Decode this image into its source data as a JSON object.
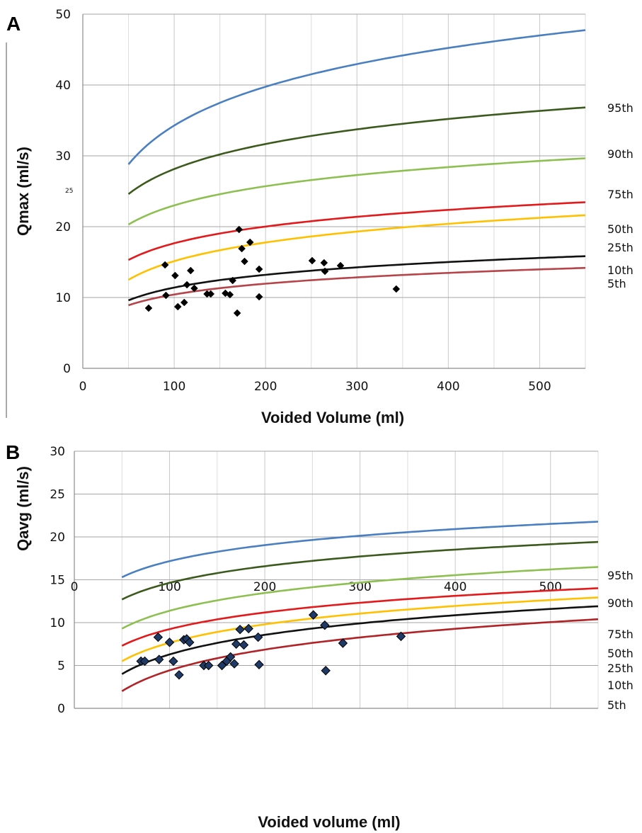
{
  "chart_data": [
    {
      "panel": "A",
      "type": "scatter",
      "xlabel": "Voided Volume (ml)",
      "ylabel": "Qmax (ml/s)",
      "xlim": [
        0,
        550
      ],
      "ylim": [
        0,
        50
      ],
      "xticks": [
        "0",
        "100",
        "200",
        "300",
        "400",
        "500"
      ],
      "yticks": [
        "0",
        "10",
        "20",
        "30",
        "40",
        "50"
      ],
      "stray_label": "25",
      "grid": true,
      "points": [
        [
          72,
          8.5
        ],
        [
          90,
          14.6
        ],
        [
          91,
          10.3
        ],
        [
          101,
          13.1
        ],
        [
          104,
          8.7
        ],
        [
          111,
          9.3
        ],
        [
          114,
          11.8
        ],
        [
          118,
          13.8
        ],
        [
          122,
          11.3
        ],
        [
          136,
          10.5
        ],
        [
          140,
          10.5
        ],
        [
          156,
          10.6
        ],
        [
          161,
          10.4
        ],
        [
          164,
          12.4
        ],
        [
          169,
          7.8
        ],
        [
          171,
          19.6
        ],
        [
          174,
          16.9
        ],
        [
          177,
          15.1
        ],
        [
          183,
          17.8
        ],
        [
          193,
          14.0
        ],
        [
          193,
          10.1
        ],
        [
          251,
          15.2
        ],
        [
          264,
          14.9
        ],
        [
          265,
          13.7
        ],
        [
          282,
          14.5
        ],
        [
          343,
          11.2
        ]
      ],
      "curves": [
        {
          "name": "95th",
          "color": "#4a7fc1",
          "a": 28.8,
          "b": 7.9
        },
        {
          "name": "90th",
          "color": "#3d5a1e",
          "a": 24.6,
          "b": 5.1
        },
        {
          "name": "75th",
          "color": "#8dc050",
          "a": 20.3,
          "b": 3.9
        },
        {
          "name": "50th",
          "color": "#e31a1c",
          "a": 15.3,
          "b": 3.4
        },
        {
          "name": "25th",
          "color": "#ffc000",
          "a": 12.5,
          "b": 3.8
        },
        {
          "name": "10th",
          "color": "#111111",
          "a": 9.6,
          "b": 2.6
        },
        {
          "name": "5th",
          "color": "#b5454a",
          "a": 8.9,
          "b": 2.2
        }
      ]
    },
    {
      "panel": "B",
      "type": "scatter",
      "xlabel": "Voided volume (ml)",
      "ylabel": "Qavg (ml/s)",
      "xlim": [
        0,
        550
      ],
      "ylim": [
        0,
        30
      ],
      "xticks": [
        "0",
        "100",
        "200",
        "300",
        "400",
        "500"
      ],
      "yticks": [
        "0",
        "5",
        "10",
        "15",
        "20",
        "25",
        "30"
      ],
      "grid": true,
      "points": [
        [
          70,
          5.5
        ],
        [
          74,
          5.5
        ],
        [
          88,
          8.3
        ],
        [
          89,
          5.7
        ],
        [
          100,
          7.7
        ],
        [
          104,
          5.5
        ],
        [
          110,
          3.9
        ],
        [
          115,
          8.0
        ],
        [
          118,
          8.1
        ],
        [
          121,
          7.7
        ],
        [
          136,
          5.0
        ],
        [
          141,
          5.0
        ],
        [
          155,
          5.0
        ],
        [
          160,
          5.5
        ],
        [
          164,
          6.0
        ],
        [
          168,
          5.2
        ],
        [
          170,
          7.5
        ],
        [
          174,
          9.2
        ],
        [
          178,
          7.4
        ],
        [
          183,
          9.3
        ],
        [
          193,
          8.3
        ],
        [
          194,
          5.1
        ],
        [
          251,
          10.9
        ],
        [
          263,
          9.7
        ],
        [
          264,
          4.4
        ],
        [
          282,
          7.6
        ],
        [
          343,
          8.4
        ]
      ],
      "curves": [
        {
          "name": "95th",
          "color": "#4a7fc1",
          "a": 15.3,
          "b": 2.7
        },
        {
          "name": "90th",
          "color": "#3d5a1e",
          "a": 12.7,
          "b": 2.8
        },
        {
          "name": "75th",
          "color": "#8dc050",
          "a": 9.3,
          "b": 3.0
        },
        {
          "name": "50th",
          "color": "#e31a1c",
          "a": 7.3,
          "b": 2.8
        },
        {
          "name": "25th",
          "color": "#ffc000",
          "a": 5.5,
          "b": 3.1
        },
        {
          "name": "10th",
          "color": "#111111",
          "a": 4.0,
          "b": 3.3
        },
        {
          "name": "5th",
          "color": "#b02428",
          "a": 2.0,
          "b": 3.5
        }
      ]
    }
  ]
}
